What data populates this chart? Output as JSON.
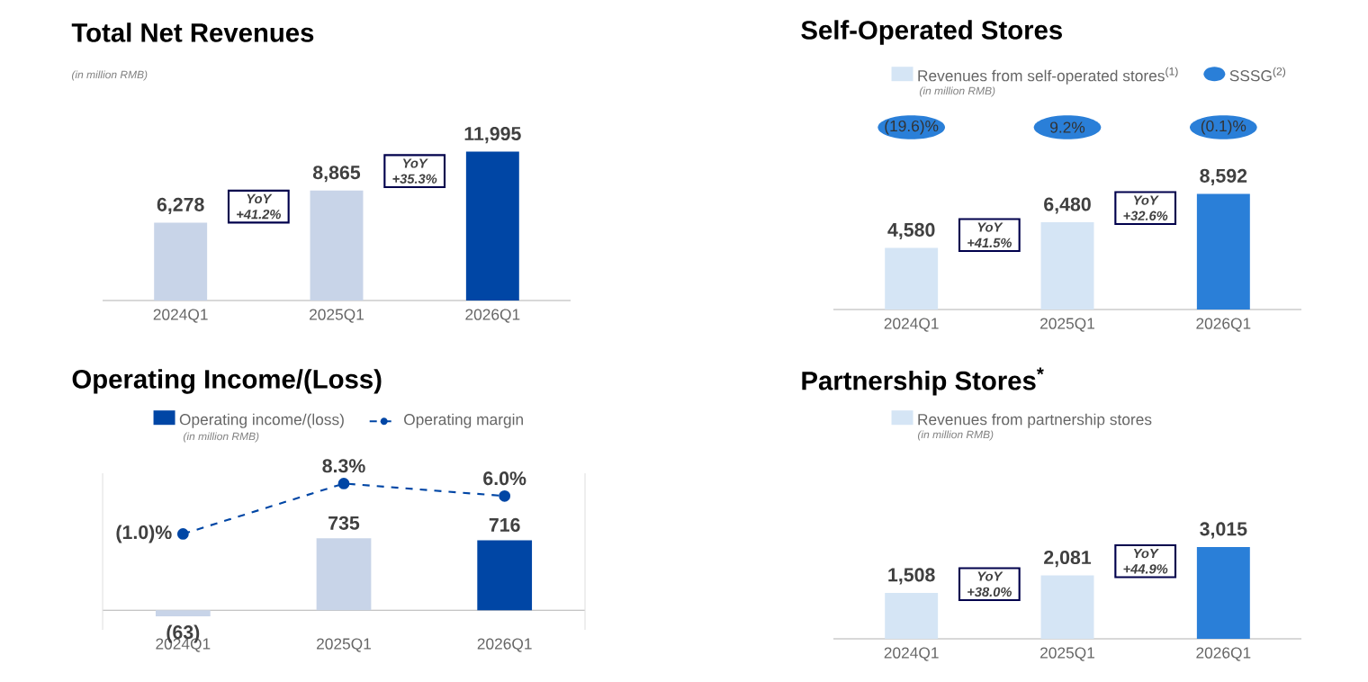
{
  "chart_data": [
    {
      "type": "bar",
      "title": "Total Net Revenues",
      "subtitle": "(in million RMB)",
      "categories": [
        "2024Q1",
        "2025Q1",
        "2026Q1"
      ],
      "values": [
        6278,
        8865,
        11995
      ],
      "colors": [
        "#c8d4e8",
        "#c8d4e8",
        "#0046a5"
      ],
      "value_labels": [
        "6,278",
        "8,865",
        "11,995"
      ],
      "tick_labels": "x",
      "annotations": [
        "YoY +41.2%",
        "YoY +35.3%"
      ]
    },
    {
      "type": "bar",
      "title": "Self-Operated Stores",
      "subtitle": "(in million RMB)",
      "categories": [
        "2024Q1",
        "2025Q1",
        "2026Q1"
      ],
      "tick_labels": "x",
      "legend": "top",
      "annotations": [
        "YoY +41.5%",
        "YoY +32.6%",
        "SSSG$^{(2)}$",
        "(19.6)%",
        "9.2%",
        "(0.1)%"
      ],
      "series": [
        {
          "name": "Revenues from self-operated stores$^{(1)}$",
          "color": "#d5e5f5",
          "colors": [
            "#d5e5f5",
            "#d5e5f5",
            "#2a7fd8"
          ],
          "values": [
            4580,
            6480,
            8592
          ],
          "value_labels": [
            "4,580",
            "6,480",
            "8,592"
          ]
        }
      ]
    },
    {
      "type": "bar",
      "title": "Operating Income/(Loss)",
      "subtitle": "(in million RMB)",
      "categories": [
        "2024Q1",
        "2025Q1",
        "2026Q1"
      ],
      "ylim": [
        -200,
        1400
      ],
      "y2lim": [
        -18.7,
        10.2
      ],
      "tick_labels": "x",
      "legend": "top",
      "series": [
        {
          "name": "Operating income/(loss)",
          "color": "#0046a5",
          "colors": [
            "#c8d4e8",
            "#c8d4e8",
            "#0046a5"
          ],
          "values": [
            -63,
            735,
            716
          ],
          "value_labels": [
            "(63)",
            "735",
            "716"
          ]
        },
        {
          "name": "Operating margin",
          "type": "line",
          "axis": "y2",
          "color": "#0046a5",
          "line_style": "dashed",
          "marker": "circle",
          "values": [
            -1.0,
            8.3,
            6.0
          ],
          "value_labels": [
            "(1.0)%",
            "8.3%",
            "6.0%"
          ]
        }
      ]
    },
    {
      "type": "bar",
      "title": "Partnership Stores$^{*}$",
      "subtitle": "(in million RMB)",
      "categories": [
        "2024Q1",
        "2025Q1",
        "2026Q1"
      ],
      "tick_labels": "x",
      "legend": "top",
      "annotations": [
        "YoY +38.0%",
        "YoY +44.9%"
      ],
      "series": [
        {
          "name": "Revenues from partnership stores",
          "color": "#d5e5f5",
          "colors": [
            "#d5e5f5",
            "#d5e5f5",
            "#2a7fd8"
          ],
          "values": [
            1508,
            2081,
            3015
          ],
          "value_labels": [
            "1,508",
            "2,081",
            "3,015"
          ]
        }
      ]
    }
  ]
}
